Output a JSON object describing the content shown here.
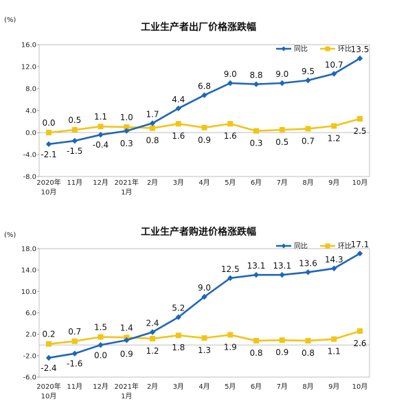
{
  "chart_data": [
    {
      "type": "line",
      "title": "工业生产者出厂价格涨跌幅",
      "unit": "(%)",
      "categories": [
        "2020年|10月",
        "11月",
        "12月",
        "2021年|1月",
        "2月",
        "3月",
        "4月",
        "5月",
        "6月",
        "7月",
        "8月",
        "9月",
        "10月"
      ],
      "ylim": [
        -8.0,
        16.0
      ],
      "yticks": [
        "16.0",
        "12.0",
        "8.0",
        "4.0",
        "0.0",
        "-4.0",
        "-8.0"
      ],
      "grid": false,
      "legend": "top-right",
      "series": [
        {
          "name": "同比",
          "color": "#1F66B8",
          "marker": "diamond",
          "values": [
            -2.1,
            -1.5,
            -0.4,
            0.3,
            1.7,
            4.4,
            6.8,
            9.0,
            8.8,
            9.0,
            9.5,
            10.7,
            13.5
          ],
          "labels": [
            "-2.1",
            "-1.5",
            "-0.4",
            "0.3",
            "1.7",
            "4.4",
            "6.8",
            "9.0",
            "8.8",
            "9.0",
            "9.5",
            "10.7",
            "13.5"
          ]
        },
        {
          "name": "环比",
          "color": "#F2C417",
          "marker": "square",
          "values": [
            0.0,
            0.5,
            1.1,
            1.0,
            0.8,
            1.6,
            0.9,
            1.6,
            0.3,
            0.5,
            0.7,
            1.2,
            2.5
          ],
          "labels": [
            "0.0",
            "0.5",
            "1.1",
            "1.0",
            "0.8",
            "1.6",
            "0.9",
            "1.6",
            "0.3",
            "0.5",
            "0.7",
            "1.2",
            "2.5"
          ]
        }
      ]
    },
    {
      "type": "line",
      "title": "工业生产者购进价格涨跌幅",
      "unit": "(%)",
      "categories": [
        "2020年|10月",
        "11月",
        "12月",
        "2021年|1月",
        "2月",
        "3月",
        "4月",
        "5月",
        "6月",
        "7月",
        "8月",
        "9月",
        "10月"
      ],
      "ylim": [
        -6.0,
        18.0
      ],
      "yticks": [
        "18.0",
        "14.0",
        "10.0",
        "6.0",
        "2.0",
        "-2.0",
        "-6.0"
      ],
      "grid": false,
      "legend": "top-right",
      "series": [
        {
          "name": "同比",
          "color": "#1F66B8",
          "marker": "diamond",
          "values": [
            -2.4,
            -1.6,
            0.0,
            0.9,
            2.4,
            5.2,
            9.0,
            12.5,
            13.1,
            13.1,
            13.6,
            14.3,
            17.1
          ],
          "labels": [
            "-2.4",
            "-1.6",
            "0.0",
            "0.9",
            "2.4",
            "5.2",
            "9.0",
            "12.5",
            "13.1",
            "13.1",
            "13.6",
            "14.3",
            "17.1"
          ]
        },
        {
          "name": "环比",
          "color": "#F2C417",
          "marker": "square",
          "values": [
            0.2,
            0.7,
            1.5,
            1.4,
            1.2,
            1.8,
            1.3,
            1.9,
            0.8,
            0.9,
            0.8,
            1.1,
            2.6
          ],
          "labels": [
            "0.2",
            "0.7",
            "1.5",
            "1.4",
            "1.2",
            "1.8",
            "1.3",
            "1.9",
            "0.8",
            "0.9",
            "0.8",
            "1.1",
            "2.6"
          ]
        }
      ]
    }
  ]
}
